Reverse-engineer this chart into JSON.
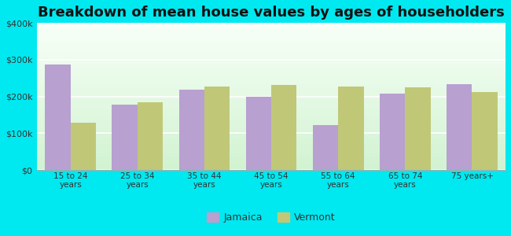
{
  "title": "Breakdown of mean house values by ages of householders",
  "categories": [
    "15 to 24\nyears",
    "25 to 34\nyears",
    "35 to 44\nyears",
    "45 to 54\nyears",
    "55 to 64\nyears",
    "65 to 74\nyears",
    "75 years+"
  ],
  "jamaica_values": [
    287000,
    178000,
    218000,
    200000,
    122000,
    207000,
    233000
  ],
  "vermont_values": [
    128000,
    185000,
    228000,
    232000,
    228000,
    226000,
    212000
  ],
  "jamaica_color": "#b8a0d0",
  "vermont_color": "#c0c878",
  "background_color": "#00e8f0",
  "ylim": [
    0,
    400000
  ],
  "yticks": [
    0,
    100000,
    200000,
    300000,
    400000
  ],
  "ytick_labels": [
    "$0",
    "$100k",
    "$200k",
    "$300k",
    "$400k"
  ],
  "title_fontsize": 13,
  "bar_width": 0.38,
  "legend_jamaica": "Jamaica",
  "legend_vermont": "Vermont"
}
